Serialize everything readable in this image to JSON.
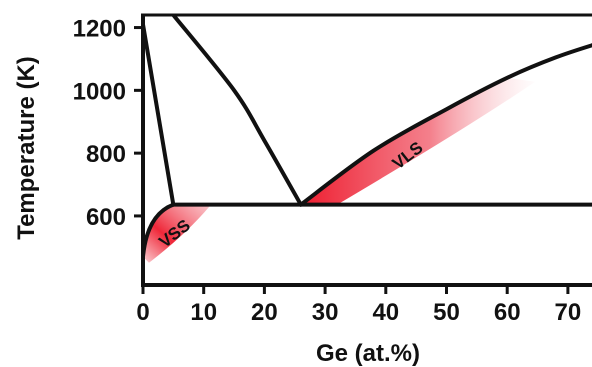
{
  "chart_data": {
    "type": "line",
    "title": "",
    "xlabel": "Ge (at.%)",
    "ylabel": "Temperature (K)",
    "xlim": [
      0,
      75
    ],
    "ylim": [
      380,
      1240
    ],
    "xticks": [
      0,
      10,
      20,
      30,
      40,
      50,
      60,
      70
    ],
    "yticks": [
      600,
      800,
      1000,
      1200
    ],
    "x_tick_labels": [
      "0",
      "10",
      "20",
      "30",
      "40",
      "50",
      "60",
      "70"
    ],
    "y_tick_labels": [
      "600",
      "800",
      "1000",
      "1200"
    ],
    "grid": false,
    "legend": "none",
    "eutectic": {
      "x": 26,
      "y": 636
    },
    "series": [
      {
        "x": [
          0,
          5
        ],
        "y": [
          1210,
          636
        ]
      },
      {
        "x": [
          5,
          26,
          75
        ],
        "y": [
          636,
          636,
          636
        ]
      },
      {
        "x": [
          0,
          5
        ],
        "y": [
          470,
          636
        ]
      },
      {
        "x": [
          5,
          15,
          20,
          26
        ],
        "y": [
          1240,
          1000,
          840,
          636
        ]
      },
      {
        "x": [
          26,
          38,
          50,
          60,
          68,
          75
        ],
        "y": [
          636,
          808,
          940,
          1040,
          1105,
          1150
        ]
      }
    ],
    "regions": [
      {
        "label": "VLS",
        "x": 42,
        "y": 810
      },
      {
        "label": "VSS",
        "x": 5,
        "y": 540
      }
    ],
    "colors": {
      "line": "#111111",
      "shade": "#ee1c2e"
    }
  }
}
